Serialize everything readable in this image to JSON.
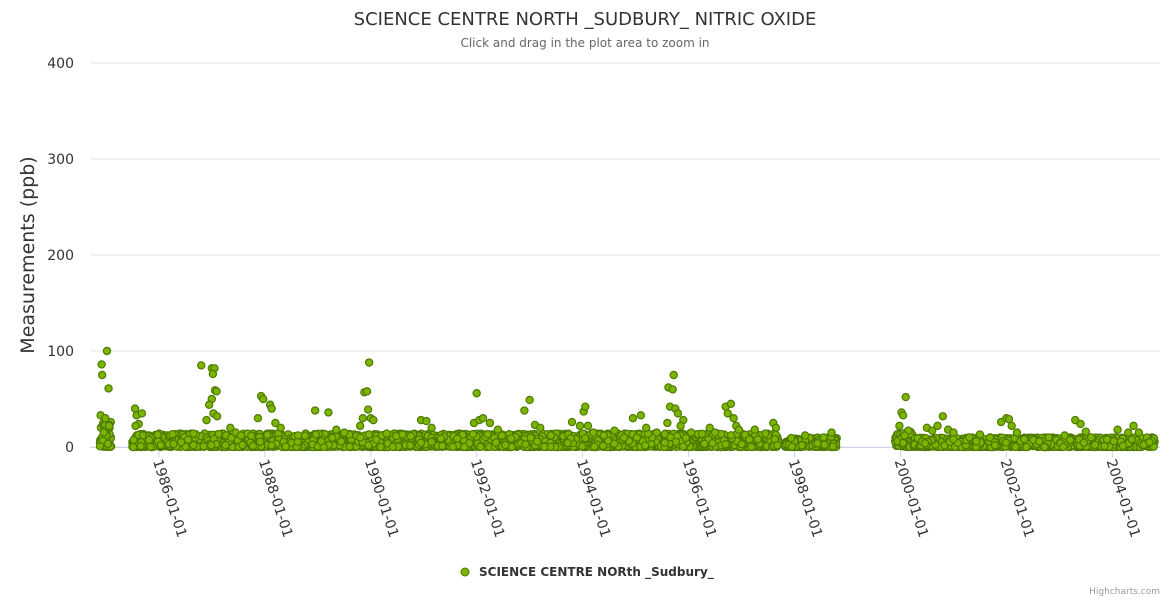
{
  "chart_data": {
    "type": "scatter",
    "title": "SCIENCE CENTRE NORTH _SUDBURY_ NITRIC OXIDE",
    "subtitle": "Click and drag in the plot area to zoom in",
    "ylabel": "Measurements (ppb)",
    "xlabel": "",
    "ylim": [
      0,
      400
    ],
    "yticks": [
      0,
      100,
      200,
      300,
      400
    ],
    "xlim": [
      1984.7,
      2004.9
    ],
    "xticks": [
      {
        "label": "1986-01-01",
        "value": 1986.0
      },
      {
        "label": "1988-01-01",
        "value": 1988.0
      },
      {
        "label": "1990-01-01",
        "value": 1990.0
      },
      {
        "label": "1992-01-01",
        "value": 1992.0
      },
      {
        "label": "1994-01-01",
        "value": 1994.0
      },
      {
        "label": "1996-01-01",
        "value": 1996.0
      },
      {
        "label": "1998-01-01",
        "value": 1998.0
      },
      {
        "label": "2000-01-01",
        "value": 2000.0
      },
      {
        "label": "2002-01-01",
        "value": 2002.0
      },
      {
        "label": "2004-01-01",
        "value": 2004.0
      }
    ],
    "grid": true,
    "legend_position": "bottom-center",
    "marker_color": "#7cb500",
    "marker_edge_color": "#4d7a00",
    "series": [
      {
        "name": "SCIENCE CENTRE NORth _Sudbury_",
        "segments": [
          {
            "start": 1984.88,
            "end": 1985.1,
            "base_max": 30,
            "seed": 11
          },
          {
            "start": 1985.5,
            "end": 1997.7,
            "base_max": 14,
            "seed": 23
          },
          {
            "start": 1997.82,
            "end": 1998.8,
            "base_max": 10,
            "seed": 37
          },
          {
            "start": 1999.9,
            "end": 2000.25,
            "base_max": 16,
            "seed": 41
          },
          {
            "start": 2000.25,
            "end": 2004.8,
            "base_max": 10,
            "seed": 53
          }
        ],
        "peaks": [
          [
            1984.92,
            86
          ],
          [
            1984.93,
            75
          ],
          [
            1985.02,
            100
          ],
          [
            1985.05,
            61
          ],
          [
            1984.9,
            33
          ],
          [
            1984.99,
            30
          ],
          [
            1985.06,
            22
          ],
          [
            1985.55,
            40
          ],
          [
            1985.58,
            33
          ],
          [
            1985.62,
            24
          ],
          [
            1985.68,
            35
          ],
          [
            1985.56,
            22
          ],
          [
            1986.8,
            85
          ],
          [
            1987.0,
            82
          ],
          [
            1987.05,
            82
          ],
          [
            1987.02,
            76
          ],
          [
            1987.06,
            59
          ],
          [
            1987.09,
            58
          ],
          [
            1987.0,
            50
          ],
          [
            1986.95,
            44
          ],
          [
            1987.03,
            35
          ],
          [
            1987.1,
            32
          ],
          [
            1986.9,
            28
          ],
          [
            1987.35,
            20
          ],
          [
            1987.45,
            15
          ],
          [
            1987.55,
            12
          ],
          [
            1987.93,
            53
          ],
          [
            1987.97,
            50
          ],
          [
            1988.1,
            44
          ],
          [
            1988.13,
            40
          ],
          [
            1987.87,
            30
          ],
          [
            1988.2,
            25
          ],
          [
            1988.3,
            20
          ],
          [
            1988.95,
            38
          ],
          [
            1989.2,
            36
          ],
          [
            1989.35,
            18
          ],
          [
            1989.5,
            15
          ],
          [
            1989.85,
            30
          ],
          [
            1989.88,
            57
          ],
          [
            1989.93,
            58
          ],
          [
            1989.97,
            88
          ],
          [
            1989.95,
            39
          ],
          [
            1990.0,
            30
          ],
          [
            1990.05,
            28
          ],
          [
            1989.8,
            22
          ],
          [
            1990.3,
            14
          ],
          [
            1990.6,
            13
          ],
          [
            1990.95,
            28
          ],
          [
            1991.05,
            27
          ],
          [
            1991.15,
            20
          ],
          [
            1991.95,
            25
          ],
          [
            1992.0,
            56
          ],
          [
            1992.05,
            28
          ],
          [
            1992.12,
            30
          ],
          [
            1992.25,
            25
          ],
          [
            1992.4,
            18
          ],
          [
            1992.9,
            38
          ],
          [
            1993.0,
            49
          ],
          [
            1993.1,
            23
          ],
          [
            1993.2,
            20
          ],
          [
            1993.4,
            12
          ],
          [
            1993.8,
            26
          ],
          [
            1993.95,
            22
          ],
          [
            1994.02,
            37
          ],
          [
            1994.05,
            42
          ],
          [
            1994.1,
            22
          ],
          [
            1994.2,
            15
          ],
          [
            1994.4,
            12
          ],
          [
            1994.6,
            17
          ],
          [
            1994.95,
            30
          ],
          [
            1995.1,
            33
          ],
          [
            1995.2,
            20
          ],
          [
            1995.4,
            15
          ],
          [
            1995.62,
            62
          ],
          [
            1995.7,
            60
          ],
          [
            1995.72,
            75
          ],
          [
            1995.65,
            42
          ],
          [
            1995.75,
            40
          ],
          [
            1995.8,
            35
          ],
          [
            1995.9,
            28
          ],
          [
            1995.85,
            22
          ],
          [
            1995.6,
            25
          ],
          [
            1996.05,
            15
          ],
          [
            1996.4,
            20
          ],
          [
            1996.5,
            15
          ],
          [
            1996.7,
            42
          ],
          [
            1996.8,
            45
          ],
          [
            1996.74,
            35
          ],
          [
            1996.85,
            30
          ],
          [
            1996.9,
            22
          ],
          [
            1996.95,
            18
          ],
          [
            1997.25,
            18
          ],
          [
            1997.45,
            14
          ],
          [
            1997.6,
            25
          ],
          [
            1997.65,
            20
          ],
          [
            1998.2,
            12
          ],
          [
            1998.55,
            10
          ],
          [
            1998.7,
            15
          ],
          [
            1999.98,
            22
          ],
          [
            2000.02,
            36
          ],
          [
            2000.05,
            33
          ],
          [
            2000.1,
            52
          ],
          [
            2000.15,
            17
          ],
          [
            2000.08,
            12
          ],
          [
            2000.5,
            20
          ],
          [
            2000.6,
            17
          ],
          [
            2000.7,
            22
          ],
          [
            2000.8,
            32
          ],
          [
            2000.9,
            18
          ],
          [
            2001.0,
            15
          ],
          [
            2001.3,
            10
          ],
          [
            2001.5,
            13
          ],
          [
            2001.9,
            26
          ],
          [
            2002.0,
            30
          ],
          [
            2002.05,
            29
          ],
          [
            2002.1,
            22
          ],
          [
            2002.2,
            15
          ],
          [
            2002.8,
            10
          ],
          [
            2003.1,
            12
          ],
          [
            2003.3,
            28
          ],
          [
            2003.4,
            24
          ],
          [
            2003.5,
            16
          ],
          [
            2003.6,
            10
          ],
          [
            2003.9,
            8
          ],
          [
            2004.1,
            18
          ],
          [
            2004.3,
            15
          ],
          [
            2004.4,
            22
          ],
          [
            2004.5,
            15
          ],
          [
            2004.7,
            5
          ]
        ]
      }
    ]
  },
  "credits": "Highcharts.com"
}
